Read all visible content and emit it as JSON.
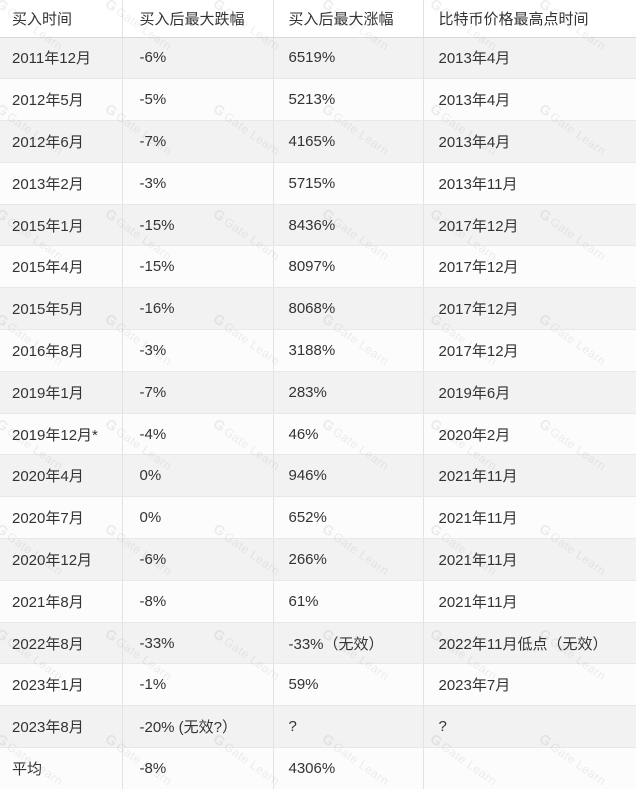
{
  "watermark": {
    "logo": "G",
    "text": "Gate Learn"
  },
  "colors": {
    "row_stripe": "#f2f2f2",
    "row_plain": "#fcfcfc",
    "row_border": "#e8e8e8",
    "column_border": "#e2e2e2",
    "header_border": "#d9d9d9",
    "text": "#333333",
    "watermark": "#e9e9e9"
  },
  "chart_data": {
    "type": "table",
    "columns": [
      "买入时间",
      "买入后最大跌幅",
      "买入后最大涨幅",
      "比特币价格最高点时间"
    ],
    "rows": [
      [
        "2011年12月",
        "-6%",
        "6519%",
        "2013年4月"
      ],
      [
        "2012年5月",
        "-5%",
        "5213%",
        "2013年4月"
      ],
      [
        "2012年6月",
        "-7%",
        "4165%",
        "2013年4月"
      ],
      [
        "2013年2月",
        "-3%",
        "5715%",
        "2013年11月"
      ],
      [
        "2015年1月",
        "-15%",
        "8436%",
        "2017年12月"
      ],
      [
        "2015年4月",
        "-15%",
        "8097%",
        "2017年12月"
      ],
      [
        "2015年5月",
        "-16%",
        "8068%",
        "2017年12月"
      ],
      [
        "2016年8月",
        "-3%",
        "3188%",
        "2017年12月"
      ],
      [
        "2019年1月",
        "-7%",
        "283%",
        "2019年6月"
      ],
      [
        "2019年12月*",
        "-4%",
        "46%",
        "2020年2月"
      ],
      [
        "2020年4月",
        "0%",
        "946%",
        "2021年11月"
      ],
      [
        "2020年7月",
        "0%",
        "652%",
        "2021年11月"
      ],
      [
        "2020年12月",
        "-6%",
        "266%",
        "2021年11月"
      ],
      [
        "2021年8月",
        "-8%",
        "61%",
        "2021年11月"
      ],
      [
        "2022年8月",
        "-33%",
        "-33%（无效）",
        "2022年11月低点（无效）"
      ],
      [
        "2023年1月",
        "-1%",
        "59%",
        "2023年7月"
      ],
      [
        "2023年8月",
        "-20% (无效?）",
        "?",
        "?"
      ],
      [
        "平均",
        "-8%",
        "4306%",
        ""
      ]
    ]
  }
}
